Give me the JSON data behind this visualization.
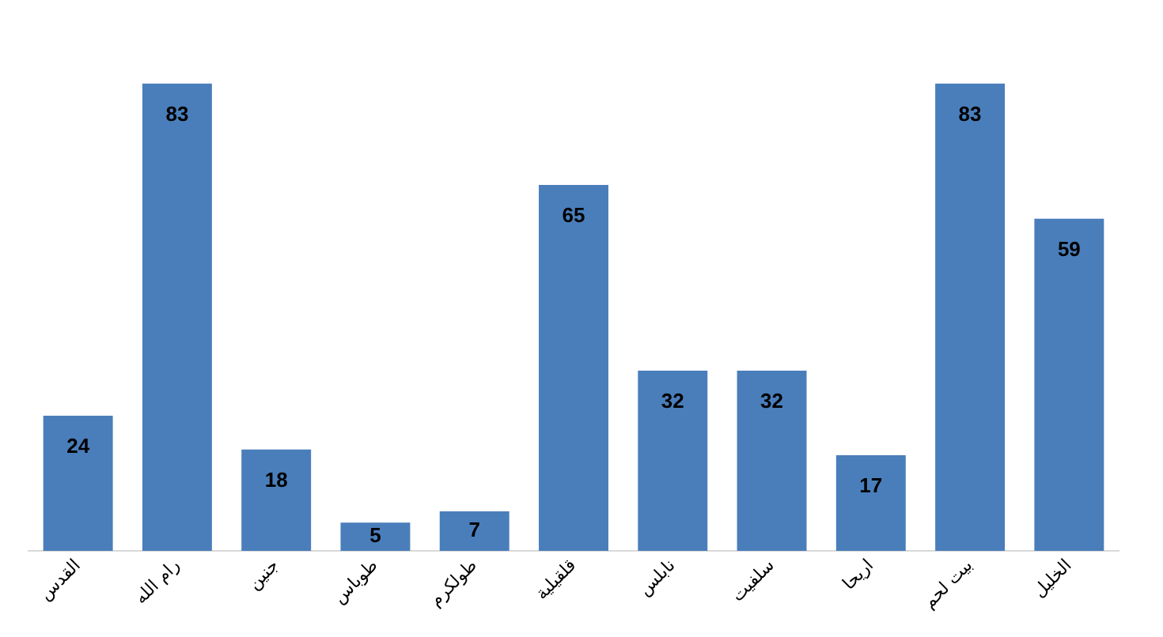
{
  "chart_data": {
    "type": "bar",
    "categories": [
      "القدس",
      "رام الله",
      "جنين",
      "طوباس",
      "طولكرم",
      "قلقيلية",
      "نابلس",
      "سلفيت",
      "اريحا",
      "بيت لحم",
      "الخليل"
    ],
    "values": [
      24,
      83,
      18,
      5,
      7,
      65,
      32,
      32,
      17,
      83,
      59
    ],
    "color": "#4a7ebb",
    "data_labels": true,
    "grid": false,
    "legend": false
  }
}
